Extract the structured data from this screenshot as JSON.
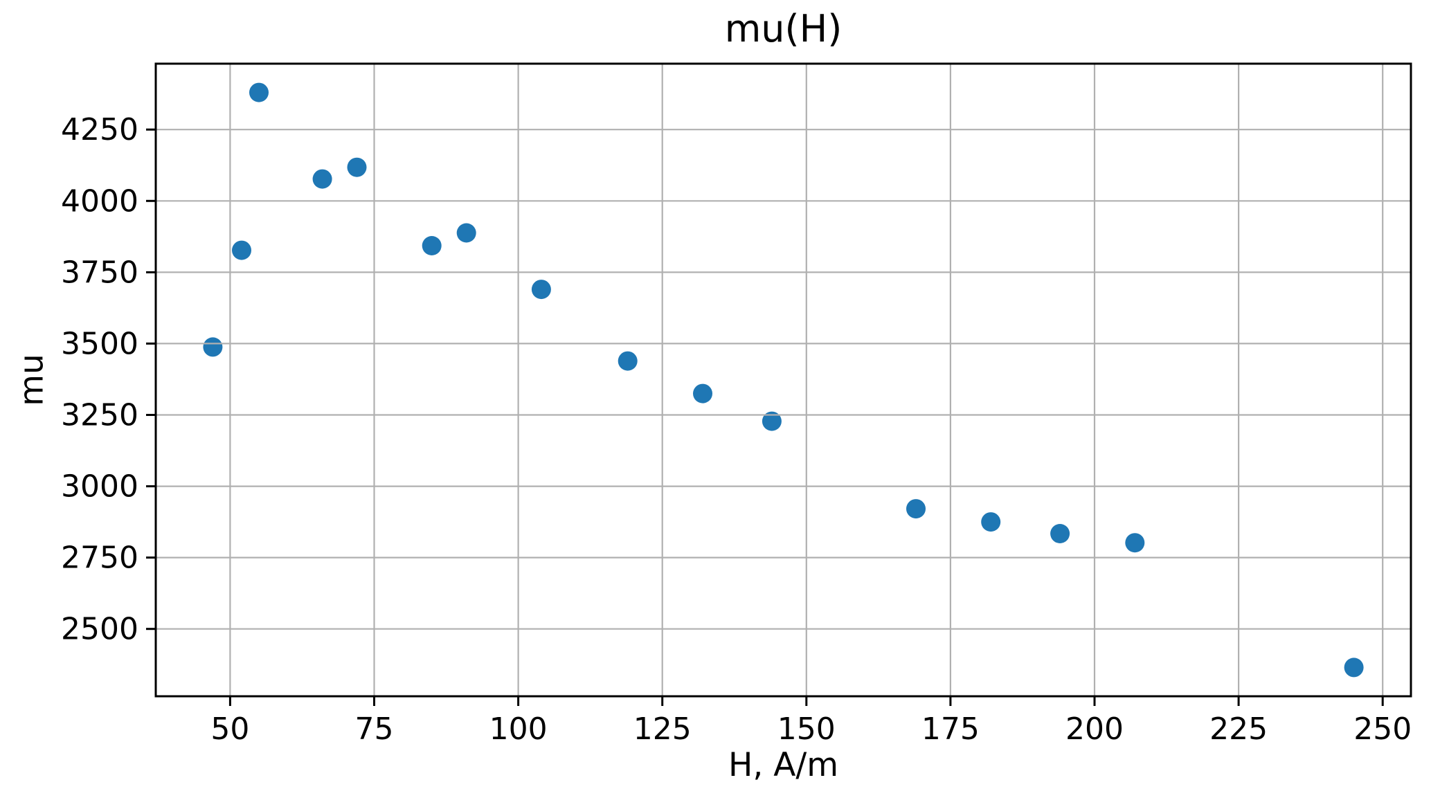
{
  "figure": {
    "background": "#ffffff"
  },
  "chart_data": {
    "type": "scatter",
    "title": "mu(H)",
    "xlabel": "H, A/m",
    "ylabel": "mu",
    "points": [
      [
        47,
        3488
      ],
      [
        52,
        3827
      ],
      [
        55,
        4380
      ],
      [
        66,
        4077
      ],
      [
        72,
        4118
      ],
      [
        85,
        3843
      ],
      [
        91,
        3888
      ],
      [
        104,
        3690
      ],
      [
        119,
        3439
      ],
      [
        132,
        3325
      ],
      [
        144,
        3228
      ],
      [
        169,
        2921
      ],
      [
        182,
        2875
      ],
      [
        194,
        2834
      ],
      [
        207,
        2802
      ],
      [
        245,
        2365
      ]
    ],
    "xticks": [
      50,
      75,
      100,
      125,
      150,
      175,
      200,
      225,
      250
    ],
    "yticks": [
      2500,
      2750,
      3000,
      3250,
      3500,
      3750,
      4000,
      4250
    ],
    "xlim": [
      37.1,
      254.9
    ],
    "ylim": [
      2264,
      4481
    ],
    "grid": true,
    "grid_above_points": true,
    "legend": "none",
    "marker_color": "#1f77b4",
    "grid_color": "#b0b0b0",
    "axis_color": "#000000"
  }
}
